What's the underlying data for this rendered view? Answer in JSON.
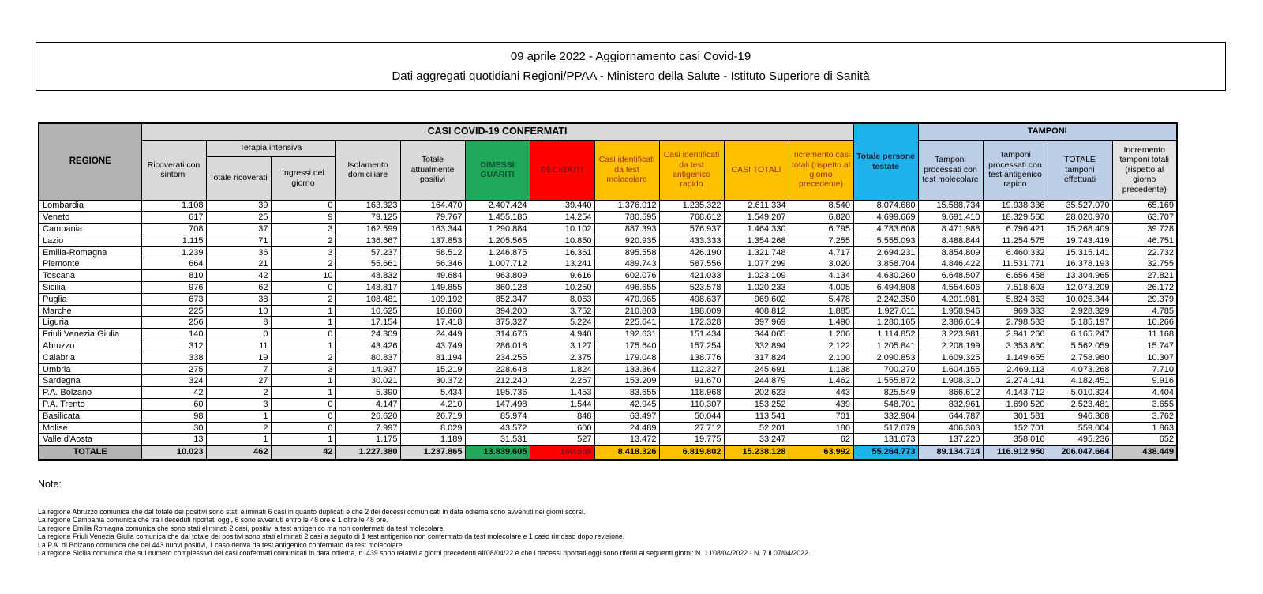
{
  "title": {
    "line1": "09 aprile 2022 - Aggiornamento casi Covid-19",
    "line2": "Dati aggregati quotidiani Regioni/PPAA - Ministero della Salute - Istituto Superiore di Sanità"
  },
  "colors": {
    "green": "#21A85C",
    "red": "#FE0000",
    "gold": "#FFC000",
    "cyan": "#1FB1EC",
    "light_blue": "#BDCFE7",
    "gray_dark": "#B3B3B3",
    "gray_light": "#D9D9D9"
  },
  "table": {
    "region_header": "REGIONE",
    "banner_casi": "CASI COVID-19 CONFERMATI",
    "banner_tamponi": "TAMPONI",
    "headers": {
      "ricoverati": "Ricoverati con sintomi",
      "terapia_intensiva": "Terapia intensiva",
      "totale_ricoverati": "Totale ricoverati",
      "ingressi_giorno": "Ingressi del giorno",
      "isolamento": "Isolamento domiciliare",
      "attualmente_positivi": "Totale attualmente positivi",
      "dimessi_guariti": "DIMESSI GUARITI",
      "deceduti": "DECEDUTI",
      "casi_molecolare": "Casi identificati da test molecolare",
      "casi_antigenico": "Casi identificati da test antigenico rapido",
      "casi_totali": "CASI TOTALI",
      "incremento_casi": "Incremento casi totali (rispetto al giorno precedente)",
      "persone_testate": "Totale persone testate",
      "tamponi_molecolare": "Tamponi processati con test molecolare",
      "tamponi_antigenico": "Tamponi processati con test antigenico rapido",
      "totale_tamponi": "TOTALE tamponi effettuati",
      "incremento_tamponi": "Incremento tamponi totali (rispetto al giorno precedente)"
    },
    "rows": [
      {
        "region": "Lombardia",
        "values": [
          "1.108",
          "39",
          "0",
          "163.323",
          "164.470",
          "2.407.424",
          "39.440",
          "1.376.012",
          "1.235.322",
          "2.611.334",
          "8.540",
          "8.074.680",
          "15.588.734",
          "19.938.336",
          "35.527.070",
          "65.169"
        ]
      },
      {
        "region": "Veneto",
        "values": [
          "617",
          "25",
          "9",
          "79.125",
          "79.767",
          "1.455.186",
          "14.254",
          "780.595",
          "768.612",
          "1.549.207",
          "6.820",
          "4.699.669",
          "9.691.410",
          "18.329.560",
          "28.020.970",
          "63.707"
        ]
      },
      {
        "region": "Campania",
        "values": [
          "708",
          "37",
          "3",
          "162.599",
          "163.344",
          "1.290.884",
          "10.102",
          "887.393",
          "576.937",
          "1.464.330",
          "6.795",
          "4.783.608",
          "8.471.988",
          "6.796.421",
          "15.268.409",
          "39.728"
        ]
      },
      {
        "region": "Lazio",
        "values": [
          "1.115",
          "71",
          "2",
          "136.667",
          "137.853",
          "1.205.565",
          "10.850",
          "920.935",
          "433.333",
          "1.354.268",
          "7.255",
          "5.555.093",
          "8.488.844",
          "11.254.575",
          "19.743.419",
          "46.751"
        ]
      },
      {
        "region": "Emilia-Romagna",
        "values": [
          "1.239",
          "36",
          "3",
          "57.237",
          "58.512",
          "1.246.875",
          "16.361",
          "895.558",
          "426.190",
          "1.321.748",
          "4.717",
          "2.694.231",
          "8.854.809",
          "6.460.332",
          "15.315.141",
          "22.732"
        ]
      },
      {
        "region": "Piemonte",
        "values": [
          "664",
          "21",
          "2",
          "55.661",
          "56.346",
          "1.007.712",
          "13.241",
          "489.743",
          "587.556",
          "1.077.299",
          "3.020",
          "3.858.704",
          "4.846.422",
          "11.531.771",
          "16.378.193",
          "32.755"
        ]
      },
      {
        "region": "Toscana",
        "values": [
          "810",
          "42",
          "10",
          "48.832",
          "49.684",
          "963.809",
          "9.616",
          "602.076",
          "421.033",
          "1.023.109",
          "4.134",
          "4.630.260",
          "6.648.507",
          "6.656.458",
          "13.304.965",
          "27.821"
        ]
      },
      {
        "region": "Sicilia",
        "values": [
          "976",
          "62",
          "0",
          "148.817",
          "149.855",
          "860.128",
          "10.250",
          "496.655",
          "523.578",
          "1.020.233",
          "4.005",
          "6.494.808",
          "4.554.606",
          "7.518.603",
          "12.073.209",
          "26.172"
        ]
      },
      {
        "region": "Puglia",
        "values": [
          "673",
          "38",
          "2",
          "108.481",
          "109.192",
          "852.347",
          "8.063",
          "470.965",
          "498.637",
          "969.602",
          "5.478",
          "2.242.350",
          "4.201.981",
          "5.824.363",
          "10.026.344",
          "29.379"
        ]
      },
      {
        "region": "Marche",
        "values": [
          "225",
          "10",
          "1",
          "10.625",
          "10.860",
          "394.200",
          "3.752",
          "210.803",
          "198.009",
          "408.812",
          "1.885",
          "1.927.011",
          "1.958.946",
          "969.383",
          "2.928.329",
          "4.785"
        ]
      },
      {
        "region": "Liguria",
        "values": [
          "256",
          "8",
          "1",
          "17.154",
          "17.418",
          "375.327",
          "5.224",
          "225.641",
          "172.328",
          "397.969",
          "1.490",
          "1.280.165",
          "2.386.614",
          "2.798.583",
          "5.185.197",
          "10.266"
        ]
      },
      {
        "region": "Friuli Venezia Giulia",
        "values": [
          "140",
          "0",
          "0",
          "24.309",
          "24.449",
          "314.676",
          "4.940",
          "192.631",
          "151.434",
          "344.065",
          "1.206",
          "1.114.852",
          "3.223.981",
          "2.941.266",
          "6.165.247",
          "11.168"
        ]
      },
      {
        "region": "Abruzzo",
        "values": [
          "312",
          "11",
          "1",
          "43.426",
          "43.749",
          "286.018",
          "3.127",
          "175.640",
          "157.254",
          "332.894",
          "2.122",
          "1.205.841",
          "2.208.199",
          "3.353.860",
          "5.562.059",
          "15.747"
        ]
      },
      {
        "region": "Calabria",
        "values": [
          "338",
          "19",
          "2",
          "80.837",
          "81.194",
          "234.255",
          "2.375",
          "179.048",
          "138.776",
          "317.824",
          "2.100",
          "2.090.853",
          "1.609.325",
          "1.149.655",
          "2.758.980",
          "10.307"
        ]
      },
      {
        "region": "Umbria",
        "values": [
          "275",
          "7",
          "3",
          "14.937",
          "15.219",
          "228.648",
          "1.824",
          "133.364",
          "112.327",
          "245.691",
          "1.138",
          "700.270",
          "1.604.155",
          "2.469.113",
          "4.073.268",
          "7.710"
        ]
      },
      {
        "region": "Sardegna",
        "values": [
          "324",
          "27",
          "1",
          "30.021",
          "30.372",
          "212.240",
          "2.267",
          "153.209",
          "91.670",
          "244.879",
          "1.462",
          "1.555.872",
          "1.908.310",
          "2.274.141",
          "4.182.451",
          "9.916"
        ]
      },
      {
        "region": "P.A. Bolzano",
        "values": [
          "42",
          "2",
          "1",
          "5.390",
          "5.434",
          "195.736",
          "1.453",
          "83.655",
          "118.968",
          "202.623",
          "443",
          "825.549",
          "866.612",
          "4.143.712",
          "5.010.324",
          "4.404"
        ]
      },
      {
        "region": "P.A. Trento",
        "values": [
          "60",
          "3",
          "0",
          "4.147",
          "4.210",
          "147.498",
          "1.544",
          "42.945",
          "110.307",
          "153.252",
          "439",
          "548.701",
          "832.961",
          "1.690.520",
          "2.523.481",
          "3.655"
        ]
      },
      {
        "region": "Basilicata",
        "values": [
          "98",
          "1",
          "0",
          "26.620",
          "26.719",
          "85.974",
          "848",
          "63.497",
          "50.044",
          "113.541",
          "701",
          "332.904",
          "644.787",
          "301.581",
          "946.368",
          "3.762"
        ]
      },
      {
        "region": "Molise",
        "values": [
          "30",
          "2",
          "0",
          "7.997",
          "8.029",
          "43.572",
          "600",
          "24.489",
          "27.712",
          "52.201",
          "180",
          "517.679",
          "406.303",
          "152.701",
          "559.004",
          "1.863"
        ]
      },
      {
        "region": "Valle d'Aosta",
        "values": [
          "13",
          "1",
          "1",
          "1.175",
          "1.189",
          "31.531",
          "527",
          "13.472",
          "19.775",
          "33.247",
          "62",
          "131.673",
          "137.220",
          "358.016",
          "495.236",
          "652"
        ]
      }
    ],
    "totale": {
      "label": "TOTALE",
      "values": [
        "10.023",
        "462",
        "42",
        "1.227.380",
        "1.237.865",
        "13.839.605",
        "160.658",
        "8.418.326",
        "6.819.802",
        "15.238.128",
        "63.992",
        "55.264.773",
        "89.134.714",
        "116.912.950",
        "206.047.664",
        "438.449"
      ]
    }
  },
  "notes": {
    "heading": "Note:",
    "lines": [
      "La regione Abruzzo comunica che dal totale dei positivi sono stati eliminati 6 casi in quanto duplicati e che 2 dei decessi comunicati in data odierna sono avvenuti nei giorni scorsi.",
      "La regione Campania comunica che tra i deceduti riportati oggi, 6 sono avvenuti entro le 48 ore e 1 oltre le 48 ore.",
      "La regione Emilia Romagna comunica che sono stati eliminati 2 casi, positivi a test antigenico ma non confermati da test molecolare.",
      "La regione Friuli Venezia Giulia comunica che dal totale dei positivi sono stati eliminati 2 casi a seguito di 1 test antigenico non confermato da test molecolare e 1 caso rimosso dopo revisione.",
      "La P.A. di Bolzano comunica che dei 443 nuovi positivi, 1 caso deriva da test antigenico confermato da test molecolare.",
      "La regione Sicilia comunica che sul numero complessivo dei casi confermati comunicati in data odierna, n. 439 sono relativi a giorni precedenti all'08/04/22 e che i decessi riportati oggi sono riferiti ai seguenti giorni: N. 1 l'08/04/2022 - N. 7 il 07/04/2022."
    ]
  }
}
